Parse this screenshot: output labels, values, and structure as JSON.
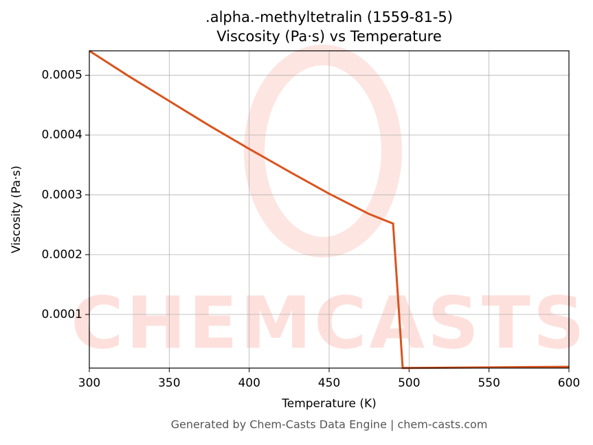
{
  "chart_data": {
    "type": "line",
    "title": ".alpha.-methyltetralin (1559-81-5)",
    "subtitle": "Viscosity (Pa·s) vs Temperature",
    "x_label": "Temperature (K)",
    "y_label": "Viscosity (Pa·s)",
    "footer": "Generated by Chem-Casts Data Engine | chem-casts.com",
    "watermark": "CHEMCASTS",
    "x": [
      300,
      325,
      350,
      375,
      400,
      425,
      450,
      475,
      490,
      496,
      600
    ],
    "series": [
      {
        "name": "Viscosity",
        "color": "#d9541e",
        "values": [
          0.000541,
          0.000498,
          0.000457,
          0.000416,
          0.000377,
          0.000339,
          0.000302,
          0.000268,
          0.000252,
          1.05e-05,
          1.25e-05
        ]
      }
    ],
    "xlim": [
      300,
      600
    ],
    "xticks": [
      300,
      350,
      400,
      450,
      500,
      550,
      600
    ],
    "ylim": [
      1.03e-05,
      0.000541
    ],
    "yticks": [
      0.0001,
      0.0002,
      0.0003,
      0.0004,
      0.0005
    ],
    "grid": true
  }
}
